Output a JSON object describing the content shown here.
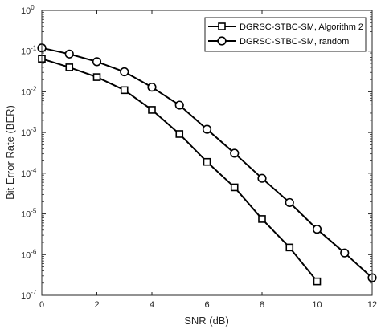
{
  "chart_data": {
    "type": "line",
    "title": "",
    "xlabel": "SNR (dB)",
    "ylabel": "Bit Error Rate (BER)",
    "xlim": [
      0,
      12
    ],
    "ylim": [
      1e-07,
      1
    ],
    "yscale": "log",
    "grid": false,
    "legend_position": "top-right",
    "x_ticks": [
      0,
      2,
      4,
      6,
      8,
      10,
      12
    ],
    "x_tick_labels": [
      "0",
      "2",
      "4",
      "6",
      "8",
      "10",
      "12"
    ],
    "y_ticks": [
      1e-07,
      1e-06,
      1e-05,
      0.0001,
      0.001,
      0.01,
      0.1,
      1
    ],
    "y_tick_exponents": [
      "-7",
      "-6",
      "-5",
      "-4",
      "-3",
      "-2",
      "-1",
      "0"
    ],
    "y_tick_base": "10",
    "series": [
      {
        "name": "DGRSC-STBC-SM, Algorithm 2",
        "marker": "square",
        "color": "#000000",
        "x": [
          0,
          1,
          2,
          3,
          4,
          5,
          6,
          7,
          8,
          9,
          10
        ],
        "y": [
          0.065,
          0.04,
          0.023,
          0.011,
          0.0036,
          0.00092,
          0.00019,
          4.5e-05,
          7.5e-06,
          1.5e-06,
          2.2e-07
        ]
      },
      {
        "name": "DGRSC-STBC-SM, random",
        "marker": "circle",
        "color": "#000000",
        "x": [
          0,
          1,
          2,
          3,
          4,
          5,
          6,
          7,
          8,
          9,
          10,
          11,
          12
        ],
        "y": [
          0.12,
          0.085,
          0.055,
          0.031,
          0.013,
          0.0047,
          0.0012,
          0.00031,
          7.5e-05,
          1.9e-05,
          4.2e-06,
          1.1e-06,
          2.7e-07
        ]
      }
    ]
  }
}
